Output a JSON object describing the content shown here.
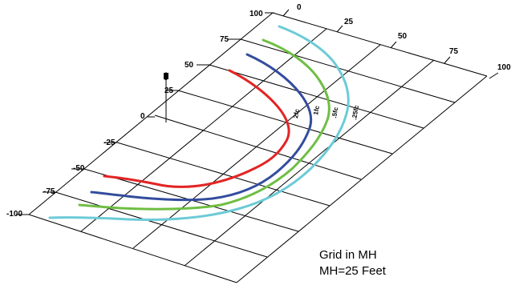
{
  "axes": {
    "x_ticks": [
      "0",
      "25",
      "50",
      "75",
      "100"
    ],
    "y_ticks": [
      "100",
      "75",
      "50",
      "25",
      "0",
      "-25",
      "-50",
      "-75",
      "-100"
    ],
    "pole_marker": "0"
  },
  "contours": [
    {
      "label": ".25fc",
      "color": "#6ccbd6"
    },
    {
      "label": ".5fc",
      "color": "#6fbe44"
    },
    {
      "label": "1fc",
      "color": "#334c9e"
    },
    {
      "label": "2fc",
      "color": "#e32424"
    }
  ],
  "caption": {
    "line1": "Grid in MH",
    "line2": "MH=25 Feet"
  }
}
